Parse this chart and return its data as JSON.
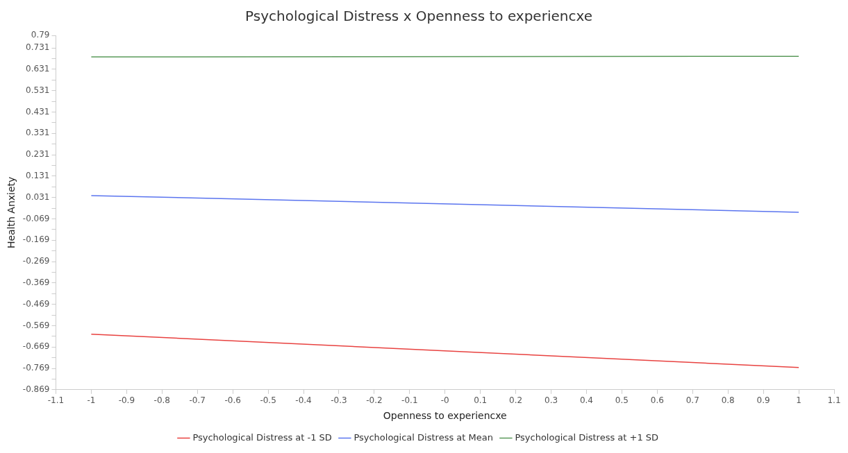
{
  "chart_data": {
    "type": "line",
    "title": "Psychological Distress x Openness to experiencxe",
    "xlabel": "Openness to experiencxe",
    "ylabel": "Health Anxiety",
    "x": [
      -1,
      1
    ],
    "series": [
      {
        "name": "Psychological Distress at -1 SD",
        "color": "#e8413f",
        "values": [
          -0.609,
          -0.765
        ]
      },
      {
        "name": "Psychological Distress at Mean",
        "color": "#5a74ef",
        "values": [
          0.04,
          -0.038
        ]
      },
      {
        "name": "Psychological Distress at +1 SD",
        "color": "#5a9a5a",
        "values": [
          0.689,
          0.692
        ]
      }
    ],
    "xlim": [
      -1.1,
      1.1
    ],
    "xticks": [
      -1.1,
      -1,
      -0.9,
      -0.8,
      -0.7,
      -0.6,
      -0.5,
      -0.4,
      -0.3,
      -0.2,
      -0.1,
      {
        "value": 0,
        "label": "-0"
      },
      0.1,
      0.2,
      0.3,
      0.4,
      0.5,
      0.6,
      0.7,
      0.8,
      0.9,
      1,
      1.1
    ],
    "ylim": [
      -0.869,
      0.79
    ],
    "yticks": [
      -0.869,
      {
        "value": -0.819,
        "label": null
      },
      -0.769,
      {
        "value": -0.719,
        "label": null
      },
      -0.669,
      {
        "value": -0.619,
        "label": null
      },
      -0.569,
      {
        "value": -0.519,
        "label": null
      },
      -0.469,
      {
        "value": -0.419,
        "label": null
      },
      -0.369,
      {
        "value": -0.319,
        "label": null
      },
      -0.269,
      {
        "value": -0.219,
        "label": null
      },
      -0.169,
      {
        "value": -0.119,
        "label": null
      },
      -0.069,
      {
        "value": -0.019,
        "label": null
      },
      0.031,
      {
        "value": 0.081,
        "label": null
      },
      0.131,
      {
        "value": 0.181,
        "label": null
      },
      0.231,
      {
        "value": 0.281,
        "label": null
      },
      0.331,
      {
        "value": 0.381,
        "label": null
      },
      0.431,
      {
        "value": 0.481,
        "label": null
      },
      0.531,
      {
        "value": 0.581,
        "label": null
      },
      0.631,
      {
        "value": 0.681,
        "label": null
      },
      0.731,
      0.79
    ],
    "grid": false,
    "legend": "bottom",
    "marker": "none",
    "line_style": "solid"
  }
}
